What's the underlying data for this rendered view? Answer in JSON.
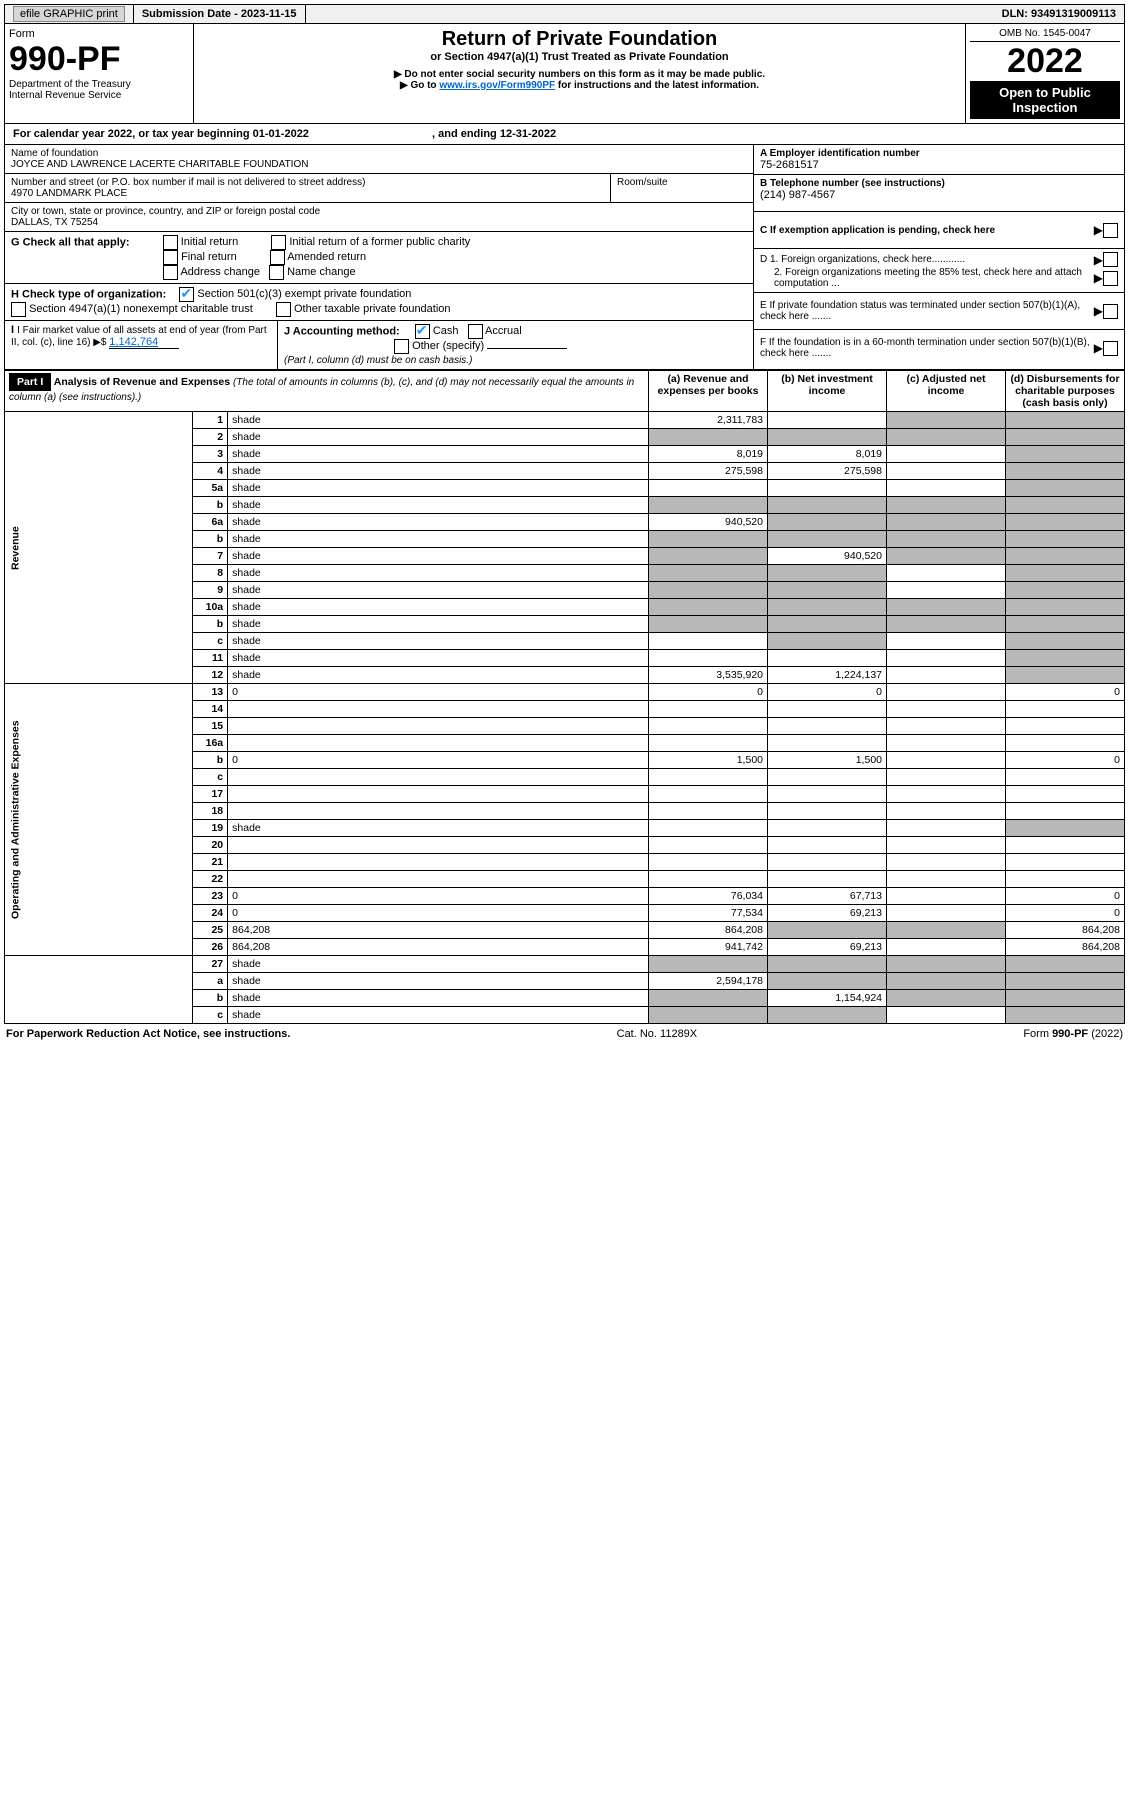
{
  "top_bar": {
    "efile": "efile GRAPHIC print",
    "submission_label": "Submission Date - ",
    "submission_date": "2023-11-15",
    "dln_label": "DLN: ",
    "dln": "93491319009113"
  },
  "header": {
    "form_word": "Form",
    "form_no": "990-PF",
    "dept1": "Department of the Treasury",
    "dept2": "Internal Revenue Service",
    "title": "Return of Private Foundation",
    "subtitle": "or Section 4947(a)(1) Trust Treated as Private Foundation",
    "note1": "▶ Do not enter social security numbers on this form as it may be made public.",
    "note2_pre": "▶ Go to ",
    "note2_link": "www.irs.gov/Form990PF",
    "note2_post": " for instructions and the latest information.",
    "omb": "OMB No. 1545-0047",
    "year": "2022",
    "open": "Open to Public Inspection"
  },
  "cal_year": {
    "text1": "For calendar year 2022, or tax year beginning ",
    "begin": "01-01-2022",
    "text2": " , and ending ",
    "end": "12-31-2022"
  },
  "foundation": {
    "name_label": "Name of foundation",
    "name": "JOYCE AND LAWRENCE LACERTE CHARITABLE FOUNDATION",
    "addr_label": "Number and street (or P.O. box number if mail is not delivered to street address)",
    "addr": "4970 LANDMARK PLACE",
    "room_label": "Room/suite",
    "room": "",
    "city_label": "City or town, state or province, country, and ZIP or foreign postal code",
    "city": "DALLAS, TX  75254"
  },
  "right_info": {
    "a_label": "A Employer identification number",
    "a_val": "75-2681517",
    "b_label": "B Telephone number (see instructions)",
    "b_val": "(214) 987-4567",
    "c_label": "C If exemption application is pending, check here",
    "d1": "D 1. Foreign organizations, check here............",
    "d2": "2. Foreign organizations meeting the 85% test, check here and attach computation ...",
    "e": "E  If private foundation status was terminated under section 507(b)(1)(A), check here .......",
    "f": "F  If the foundation is in a 60-month termination under section 507(b)(1)(B), check here .......",
    "arrow": "▶"
  },
  "g": {
    "label": "G Check all that apply:",
    "o1": "Initial return",
    "o2": "Final return",
    "o3": "Address change",
    "o4": "Initial return of a former public charity",
    "o5": "Amended return",
    "o6": "Name change"
  },
  "h": {
    "label": "H Check type of organization:",
    "o1": "Section 501(c)(3) exempt private foundation",
    "o2": "Section 4947(a)(1) nonexempt charitable trust",
    "o3": "Other taxable private foundation"
  },
  "i": {
    "label": "I Fair market value of all assets at end of year (from Part II, col. (c), line 16) ▶$ ",
    "val": "1,142,764"
  },
  "j": {
    "label": "J Accounting method:",
    "cash": "Cash",
    "accrual": "Accrual",
    "other": "Other (specify)",
    "note": "(Part I, column (d) must be on cash basis.)"
  },
  "part1": {
    "label": "Part I",
    "title": "Analysis of Revenue and Expenses ",
    "title_note": "(The total of amounts in columns (b), (c), and (d) may not necessarily equal the amounts in column (a) (see instructions).)",
    "col_a": "(a)   Revenue and expenses per books",
    "col_b": "(b)   Net investment income",
    "col_c": "(c)   Adjusted net income",
    "col_d": "(d)   Disbursements for charitable purposes (cash basis only)"
  },
  "side_labels": {
    "rev": "Revenue",
    "opex": "Operating and Administrative Expenses"
  },
  "rows": [
    {
      "sec": "rev",
      "n": "1",
      "d": "shade",
      "a": "2,311,783",
      "b": "",
      "c": "shade"
    },
    {
      "sec": "rev",
      "n": "2",
      "d": "shade",
      "a": "shade",
      "b": "shade",
      "c": "shade"
    },
    {
      "sec": "rev",
      "n": "3",
      "d": "shade",
      "a": "8,019",
      "b": "8,019",
      "c": ""
    },
    {
      "sec": "rev",
      "n": "4",
      "d": "shade",
      "a": "275,598",
      "b": "275,598",
      "c": ""
    },
    {
      "sec": "rev",
      "n": "5a",
      "d": "shade",
      "a": "",
      "b": "",
      "c": ""
    },
    {
      "sec": "rev",
      "n": "b",
      "d": "shade",
      "a": "shade",
      "b": "shade",
      "c": "shade"
    },
    {
      "sec": "rev",
      "n": "6a",
      "d": "shade",
      "a": "940,520",
      "b": "shade",
      "c": "shade"
    },
    {
      "sec": "rev",
      "n": "b",
      "d": "shade",
      "a": "shade",
      "b": "shade",
      "c": "shade"
    },
    {
      "sec": "rev",
      "n": "7",
      "d": "shade",
      "a": "shade",
      "b": "940,520",
      "c": "shade"
    },
    {
      "sec": "rev",
      "n": "8",
      "d": "shade",
      "a": "shade",
      "b": "shade",
      "c": ""
    },
    {
      "sec": "rev",
      "n": "9",
      "d": "shade",
      "a": "shade",
      "b": "shade",
      "c": ""
    },
    {
      "sec": "rev",
      "n": "10a",
      "d": "shade",
      "a": "shade",
      "b": "shade",
      "c": "shade"
    },
    {
      "sec": "rev",
      "n": "b",
      "d": "shade",
      "a": "shade",
      "b": "shade",
      "c": "shade"
    },
    {
      "sec": "rev",
      "n": "c",
      "d": "shade",
      "a": "",
      "b": "shade",
      "c": ""
    },
    {
      "sec": "rev",
      "n": "11",
      "d": "shade",
      "a": "",
      "b": "",
      "c": ""
    },
    {
      "sec": "rev",
      "n": "12",
      "d": "shade",
      "a": "3,535,920",
      "b": "1,224,137",
      "c": ""
    },
    {
      "sec": "op",
      "n": "13",
      "d": "0",
      "a": "0",
      "b": "0",
      "c": ""
    },
    {
      "sec": "op",
      "n": "14",
      "d": "",
      "a": "",
      "b": "",
      "c": ""
    },
    {
      "sec": "op",
      "n": "15",
      "d": "",
      "a": "",
      "b": "",
      "c": ""
    },
    {
      "sec": "op",
      "n": "16a",
      "d": "",
      "a": "",
      "b": "",
      "c": ""
    },
    {
      "sec": "op",
      "n": "b",
      "d": "0",
      "a": "1,500",
      "b": "1,500",
      "c": ""
    },
    {
      "sec": "op",
      "n": "c",
      "d": "",
      "a": "",
      "b": "",
      "c": ""
    },
    {
      "sec": "op",
      "n": "17",
      "d": "",
      "a": "",
      "b": "",
      "c": ""
    },
    {
      "sec": "op",
      "n": "18",
      "d": "",
      "a": "",
      "b": "",
      "c": ""
    },
    {
      "sec": "op",
      "n": "19",
      "d": "shade",
      "a": "",
      "b": "",
      "c": ""
    },
    {
      "sec": "op",
      "n": "20",
      "d": "",
      "a": "",
      "b": "",
      "c": ""
    },
    {
      "sec": "op",
      "n": "21",
      "d": "",
      "a": "",
      "b": "",
      "c": ""
    },
    {
      "sec": "op",
      "n": "22",
      "d": "",
      "a": "",
      "b": "",
      "c": ""
    },
    {
      "sec": "op",
      "n": "23",
      "d": "0",
      "a": "76,034",
      "b": "67,713",
      "c": ""
    },
    {
      "sec": "op",
      "n": "24",
      "d": "0",
      "a": "77,534",
      "b": "69,213",
      "c": ""
    },
    {
      "sec": "op",
      "n": "25",
      "d": "864,208",
      "a": "864,208",
      "b": "shade",
      "c": "shade"
    },
    {
      "sec": "op",
      "n": "26",
      "d": "864,208",
      "a": "941,742",
      "b": "69,213",
      "c": ""
    },
    {
      "sec": "end",
      "n": "27",
      "d": "shade",
      "a": "shade",
      "b": "shade",
      "c": "shade"
    },
    {
      "sec": "end",
      "n": "a",
      "d": "shade",
      "a": "2,594,178",
      "b": "shade",
      "c": "shade"
    },
    {
      "sec": "end",
      "n": "b",
      "d": "shade",
      "a": "shade",
      "b": "1,154,924",
      "c": "shade"
    },
    {
      "sec": "end",
      "n": "c",
      "d": "shade",
      "a": "shade",
      "b": "shade",
      "c": ""
    }
  ],
  "footer": {
    "left": "For Paperwork Reduction Act Notice, see instructions.",
    "mid": "Cat. No. 11289X",
    "right": "Form 990-PF (2022)"
  }
}
